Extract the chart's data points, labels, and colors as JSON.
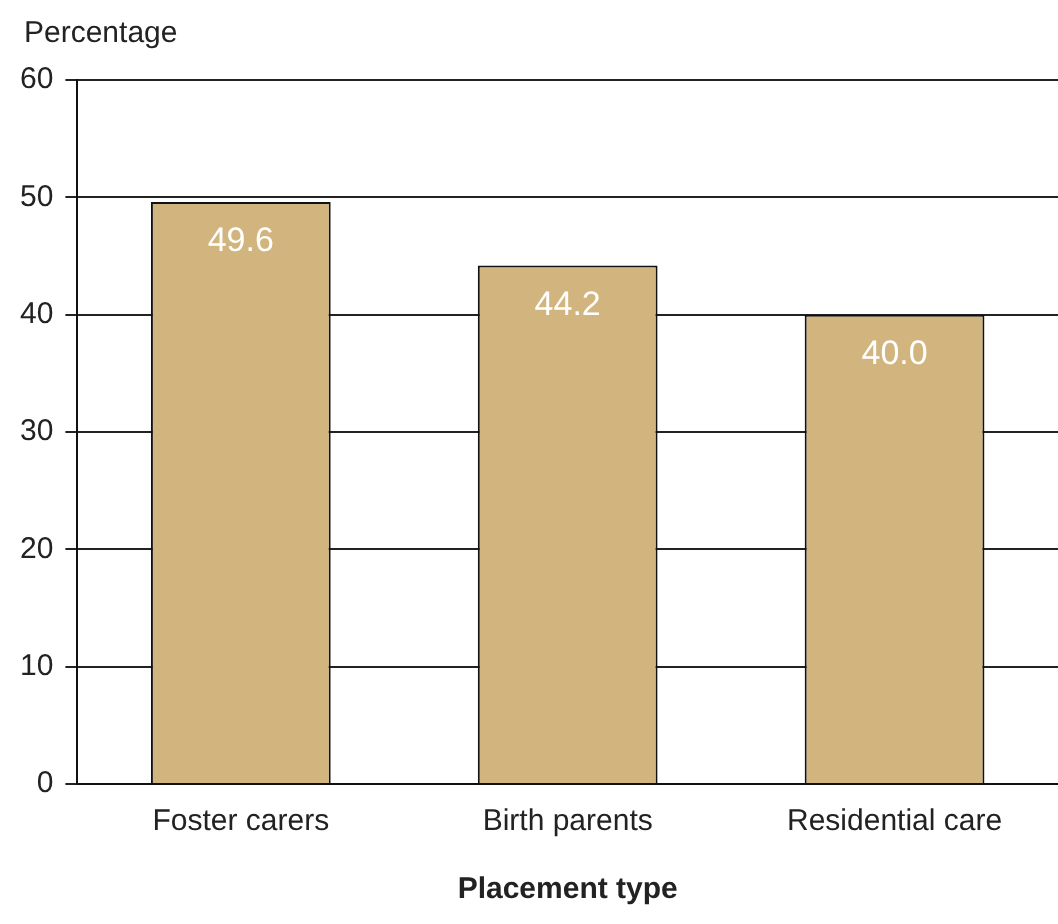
{
  "chart_data": {
    "type": "bar",
    "xlabel": "Placement type",
    "ylabel": "Percentage",
    "categories": [
      "Foster carers",
      "Birth parents",
      "Residential care"
    ],
    "values": [
      49.6,
      44.2,
      40.0
    ],
    "value_labels": [
      "49.6",
      "44.2",
      "40.0"
    ],
    "color": "#d2b47e",
    "ylim": [
      0,
      60
    ],
    "yticks": [
      0,
      10,
      20,
      30,
      40,
      50,
      60
    ],
    "grid": "y",
    "legend": false
  }
}
